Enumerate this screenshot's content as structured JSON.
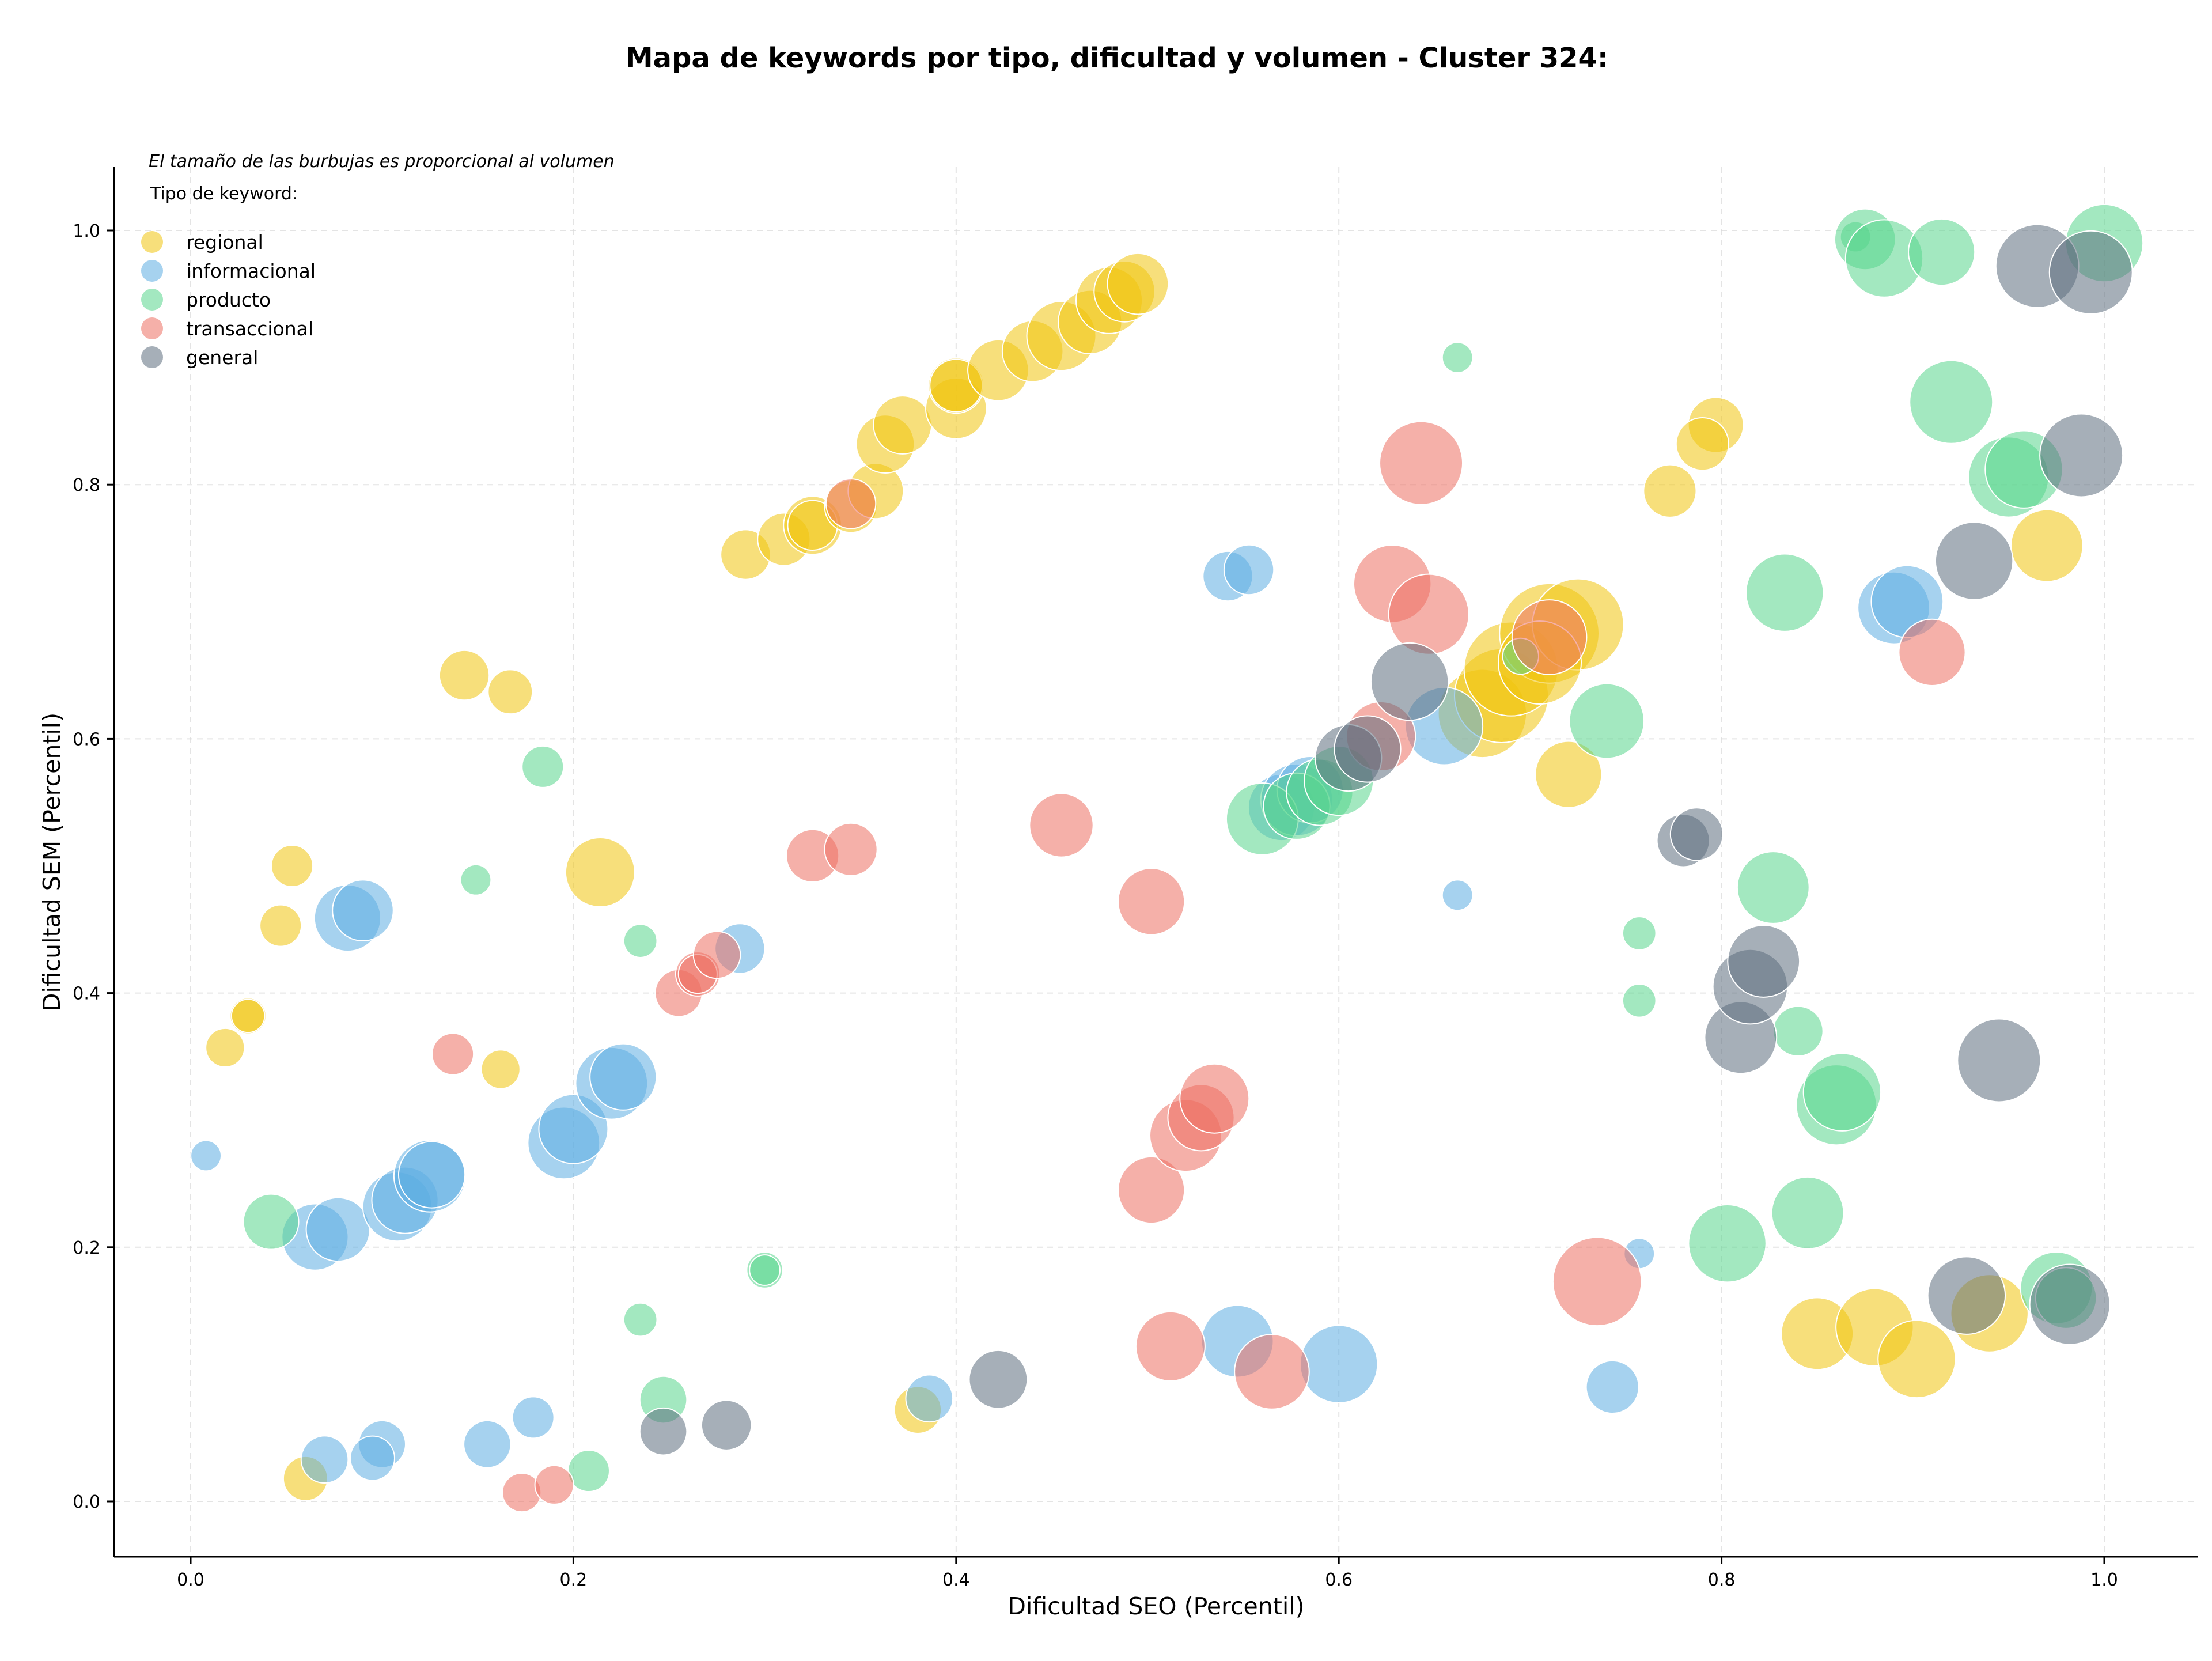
{
  "chart_data": {
    "type": "scatter",
    "title": "Mapa de keywords por tipo, dificultad y volumen - Cluster 324:",
    "xlabel": "Dificultad SEO (Percentil)",
    "ylabel": "Dificultad SEM (Percentil)",
    "xlim": [
      -0.04,
      1.05
    ],
    "ylim": [
      -0.04,
      1.05
    ],
    "xticks": [
      0.0,
      0.2,
      0.4,
      0.6,
      0.8,
      1.0
    ],
    "yticks": [
      0.0,
      0.2,
      0.4,
      0.6,
      0.8,
      1.0
    ],
    "xtick_labels": [
      "0.0",
      "0.2",
      "0.4",
      "0.6",
      "0.8",
      "1.0"
    ],
    "ytick_labels": [
      "0.0",
      "0.2",
      "0.4",
      "0.6",
      "0.8",
      "1.0"
    ],
    "grid": true,
    "note": "El tamaño de las burbujas es proporcional al volumen",
    "legend_title": "Tipo de keyword:",
    "legend_position": "top-left",
    "series": [
      {
        "name": "regional",
        "color": "#f1c40f",
        "points": [
          [
            0.29,
            0.745,
            18
          ],
          [
            0.31,
            0.757,
            19
          ],
          [
            0.325,
            0.768,
            21
          ],
          [
            0.325,
            0.768,
            18
          ],
          [
            0.345,
            0.783,
            19
          ],
          [
            0.358,
            0.795,
            20
          ],
          [
            0.363,
            0.832,
            21
          ],
          [
            0.372,
            0.847,
            21
          ],
          [
            0.4,
            0.86,
            22
          ],
          [
            0.4,
            0.878,
            20
          ],
          [
            0.4,
            0.878,
            19
          ],
          [
            0.422,
            0.89,
            22
          ],
          [
            0.44,
            0.905,
            22
          ],
          [
            0.455,
            0.917,
            25
          ],
          [
            0.47,
            0.928,
            23
          ],
          [
            0.48,
            0.945,
            24
          ],
          [
            0.488,
            0.952,
            22
          ],
          [
            0.495,
            0.958,
            22
          ],
          [
            0.143,
            0.65,
            18
          ],
          [
            0.167,
            0.637,
            16
          ],
          [
            0.053,
            0.5,
            15
          ],
          [
            0.047,
            0.453,
            15
          ],
          [
            0.03,
            0.382,
            13
          ],
          [
            0.03,
            0.382,
            12
          ],
          [
            0.018,
            0.357,
            14
          ],
          [
            0.162,
            0.34,
            14
          ],
          [
            0.214,
            0.495,
            25
          ],
          [
            0.06,
            0.018,
            16
          ],
          [
            0.38,
            0.072,
            17
          ],
          [
            0.72,
            0.572,
            24
          ],
          [
            0.675,
            0.62,
            32
          ],
          [
            0.685,
            0.634,
            34
          ],
          [
            0.69,
            0.655,
            34
          ],
          [
            0.71,
            0.683,
            36
          ],
          [
            0.725,
            0.69,
            33
          ],
          [
            0.705,
            0.66,
            30
          ],
          [
            0.797,
            0.847,
            20
          ],
          [
            0.79,
            0.832,
            19
          ],
          [
            0.773,
            0.795,
            19
          ],
          [
            0.97,
            0.752,
            26
          ],
          [
            0.85,
            0.132,
            26
          ],
          [
            0.88,
            0.137,
            28
          ],
          [
            0.902,
            0.112,
            28
          ],
          [
            0.94,
            0.148,
            28
          ]
        ]
      },
      {
        "name": "informacional",
        "color": "#5dade2",
        "points": [
          [
            0.008,
            0.272,
            11
          ],
          [
            0.082,
            0.459,
            24
          ],
          [
            0.09,
            0.465,
            22
          ],
          [
            0.065,
            0.208,
            24
          ],
          [
            0.077,
            0.214,
            23
          ],
          [
            0.108,
            0.232,
            25
          ],
          [
            0.112,
            0.237,
            24
          ],
          [
            0.125,
            0.256,
            26
          ],
          [
            0.126,
            0.257,
            24
          ],
          [
            0.195,
            0.282,
            26
          ],
          [
            0.2,
            0.293,
            25
          ],
          [
            0.22,
            0.329,
            26
          ],
          [
            0.226,
            0.334,
            24
          ],
          [
            0.287,
            0.435,
            18
          ],
          [
            0.07,
            0.033,
            17
          ],
          [
            0.1,
            0.045,
            17
          ],
          [
            0.095,
            0.034,
            16
          ],
          [
            0.155,
            0.045,
            17
          ],
          [
            0.179,
            0.066,
            15
          ],
          [
            0.386,
            0.081,
            17
          ],
          [
            0.542,
            0.728,
            18
          ],
          [
            0.553,
            0.733,
            18
          ],
          [
            0.57,
            0.546,
            24
          ],
          [
            0.578,
            0.552,
            26
          ],
          [
            0.585,
            0.56,
            24
          ],
          [
            0.655,
            0.61,
            28
          ],
          [
            0.662,
            0.477,
            11
          ],
          [
            0.757,
            0.195,
            11
          ],
          [
            0.743,
            0.09,
            19
          ],
          [
            0.547,
            0.126,
            26
          ],
          [
            0.6,
            0.108,
            28
          ],
          [
            0.89,
            0.703,
            26
          ],
          [
            0.897,
            0.708,
            26
          ]
        ]
      },
      {
        "name": "producto",
        "color": "#58d68d",
        "points": [
          [
            0.042,
            0.22,
            20
          ],
          [
            0.149,
            0.489,
            11
          ],
          [
            0.184,
            0.578,
            15
          ],
          [
            0.235,
            0.441,
            12
          ],
          [
            0.235,
            0.143,
            12
          ],
          [
            0.3,
            0.182,
            13
          ],
          [
            0.3,
            0.182,
            11
          ],
          [
            0.247,
            0.08,
            17
          ],
          [
            0.208,
            0.024,
            15
          ],
          [
            0.56,
            0.537,
            26
          ],
          [
            0.578,
            0.547,
            24
          ],
          [
            0.59,
            0.558,
            24
          ],
          [
            0.6,
            0.567,
            25
          ],
          [
            0.662,
            0.9,
            11
          ],
          [
            0.695,
            0.665,
            13
          ],
          [
            0.74,
            0.614,
            27
          ],
          [
            0.757,
            0.447,
            12
          ],
          [
            0.757,
            0.394,
            12
          ],
          [
            0.803,
            0.203,
            28
          ],
          [
            0.845,
            0.227,
            26
          ],
          [
            0.833,
            0.715,
            28
          ],
          [
            0.827,
            0.483,
            26
          ],
          [
            0.84,
            0.37,
            18
          ],
          [
            0.86,
            0.312,
            29
          ],
          [
            0.863,
            0.322,
            28
          ],
          [
            0.87,
            0.995,
            11
          ],
          [
            0.875,
            0.993,
            22
          ],
          [
            0.885,
            0.978,
            28
          ],
          [
            0.915,
            0.983,
            24
          ],
          [
            0.92,
            0.865,
            30
          ],
          [
            0.95,
            0.806,
            29
          ],
          [
            0.958,
            0.812,
            28
          ],
          [
            1.0,
            0.99,
            28
          ],
          [
            0.975,
            0.168,
            26
          ],
          [
            0.98,
            0.16,
            22
          ]
        ]
      },
      {
        "name": "transaccional",
        "color": "#ec7063",
        "points": [
          [
            0.137,
            0.352,
            15
          ],
          [
            0.255,
            0.4,
            17
          ],
          [
            0.265,
            0.415,
            16
          ],
          [
            0.265,
            0.415,
            14
          ],
          [
            0.275,
            0.43,
            17
          ],
          [
            0.325,
            0.508,
            19
          ],
          [
            0.345,
            0.513,
            19
          ],
          [
            0.345,
            0.785,
            18
          ],
          [
            0.173,
            0.007,
            14
          ],
          [
            0.19,
            0.013,
            14
          ],
          [
            0.455,
            0.532,
            23
          ],
          [
            0.502,
            0.472,
            24
          ],
          [
            0.502,
            0.245,
            24
          ],
          [
            0.52,
            0.288,
            26
          ],
          [
            0.528,
            0.302,
            24
          ],
          [
            0.535,
            0.317,
            25
          ],
          [
            0.512,
            0.122,
            25
          ],
          [
            0.565,
            0.102,
            27
          ],
          [
            0.628,
            0.722,
            28
          ],
          [
            0.647,
            0.698,
            29
          ],
          [
            0.643,
            0.817,
            30
          ],
          [
            0.622,
            0.602,
            25
          ],
          [
            0.71,
            0.68,
            27
          ],
          [
            0.735,
            0.173,
            32
          ],
          [
            0.91,
            0.668,
            24
          ]
        ]
      },
      {
        "name": "general",
        "color": "#5d6d7e",
        "points": [
          [
            0.247,
            0.055,
            17
          ],
          [
            0.28,
            0.06,
            18
          ],
          [
            0.422,
            0.096,
            21
          ],
          [
            0.605,
            0.585,
            24
          ],
          [
            0.615,
            0.592,
            24
          ],
          [
            0.637,
            0.645,
            28
          ],
          [
            0.78,
            0.52,
            19
          ],
          [
            0.787,
            0.525,
            19
          ],
          [
            0.81,
            0.365,
            26
          ],
          [
            0.815,
            0.405,
            27
          ],
          [
            0.822,
            0.425,
            26
          ],
          [
            0.928,
            0.162,
            28
          ],
          [
            0.945,
            0.347,
            30
          ],
          [
            0.932,
            0.74,
            28
          ],
          [
            0.965,
            0.972,
            30
          ],
          [
            0.988,
            0.823,
            30
          ],
          [
            0.993,
            0.967,
            30
          ],
          [
            0.982,
            0.155,
            29
          ]
        ]
      }
    ]
  }
}
